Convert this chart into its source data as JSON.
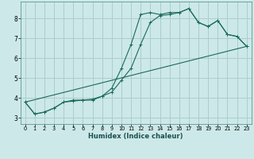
{
  "xlabel": "Humidex (Indice chaleur)",
  "background_color": "#cde8e8",
  "grid_color": "#aacece",
  "line_color": "#1a6b5a",
  "xlim": [
    -0.5,
    23.5
  ],
  "ylim": [
    2.7,
    8.85
  ],
  "xticks": [
    0,
    1,
    2,
    3,
    4,
    5,
    6,
    7,
    8,
    9,
    10,
    11,
    12,
    13,
    14,
    15,
    16,
    17,
    18,
    19,
    20,
    21,
    22,
    23
  ],
  "yticks": [
    3,
    4,
    5,
    6,
    7,
    8
  ],
  "series1_x": [
    0,
    1,
    2,
    3,
    4,
    5,
    6,
    7,
    8,
    9,
    10,
    11,
    12,
    13,
    14,
    15,
    16,
    17,
    18,
    19,
    20,
    21,
    22,
    23
  ],
  "series1_y": [
    3.8,
    3.2,
    3.3,
    3.5,
    3.8,
    3.9,
    3.9,
    3.9,
    4.1,
    4.5,
    5.5,
    6.7,
    8.2,
    8.3,
    8.2,
    8.3,
    8.3,
    8.5,
    7.8,
    7.6,
    7.9,
    7.2,
    7.1,
    6.6
  ],
  "series2_x": [
    0,
    1,
    2,
    3,
    4,
    5,
    6,
    7,
    8,
    9,
    10,
    11,
    12,
    13,
    14,
    15,
    16,
    17,
    18,
    19,
    20,
    21,
    22,
    23
  ],
  "series2_y": [
    3.8,
    3.2,
    3.3,
    3.5,
    3.8,
    3.85,
    3.9,
    3.95,
    4.1,
    4.3,
    4.9,
    5.5,
    6.7,
    7.8,
    8.15,
    8.2,
    8.3,
    8.5,
    7.8,
    7.6,
    7.9,
    7.2,
    7.1,
    6.6
  ],
  "series3_x": [
    0,
    23
  ],
  "series3_y": [
    3.8,
    6.6
  ]
}
